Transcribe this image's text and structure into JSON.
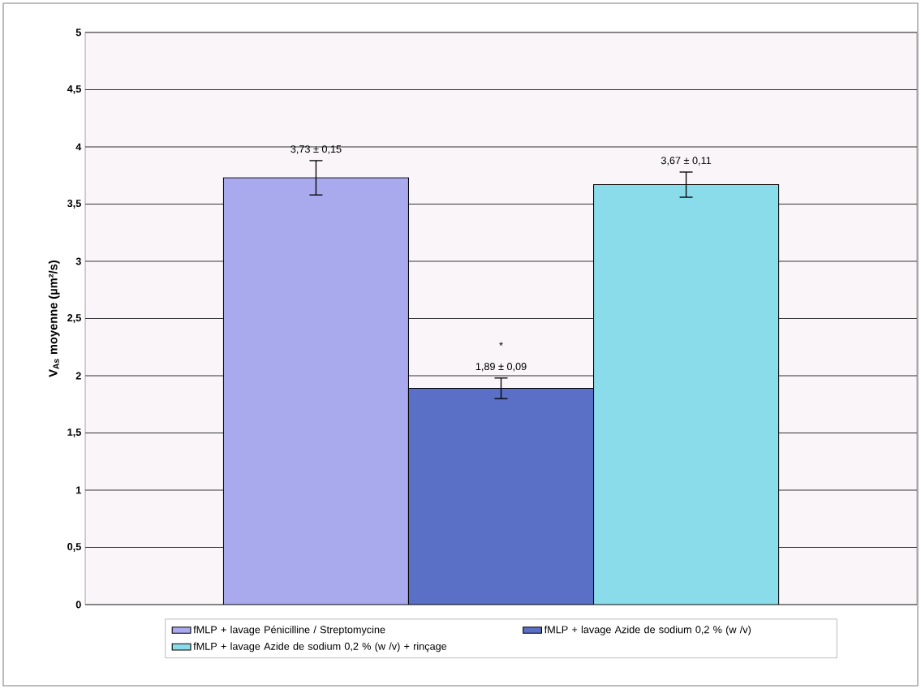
{
  "chart_data": {
    "type": "bar",
    "ylabel": "V$_{As}$ moyenne (µm²/s)",
    "categories": [
      null
    ],
    "series": [
      {
        "name": "fMLP + lavage Pénicilline / Streptomycine",
        "color": "#a9a9ee",
        "values": [
          3.73
        ],
        "errors": [
          0.15
        ],
        "value_labels": [
          "3,73 ± 0,15"
        ]
      },
      {
        "name": "fMLP + lavage Azide de sodium 0,2 % (w /v)",
        "color": "#5a6fc6",
        "values": [
          1.89
        ],
        "errors": [
          0.09
        ],
        "value_labels": [
          "1,89 ± 0,09"
        ]
      },
      {
        "name": "fMLP + lavage Azide de sodium 0,2 % (w /v) + rinçage",
        "color": "#8adcea",
        "values": [
          3.67
        ],
        "errors": [
          0.11
        ],
        "value_labels": [
          "3,67 ± 0,11"
        ]
      }
    ],
    "annotations": [
      "*"
    ],
    "ylim": [
      0,
      5
    ],
    "yticks": [
      0,
      {
        "value": 0.5,
        "label": "0,5"
      },
      1,
      {
        "value": 1.5,
        "label": "1,5"
      },
      2,
      {
        "value": 2.5,
        "label": "2,5"
      },
      3,
      {
        "value": 3.5,
        "label": "3,5"
      },
      4,
      {
        "value": 4.5,
        "label": "4,5"
      },
      5
    ],
    "grid": "y",
    "legend": "bottom"
  }
}
